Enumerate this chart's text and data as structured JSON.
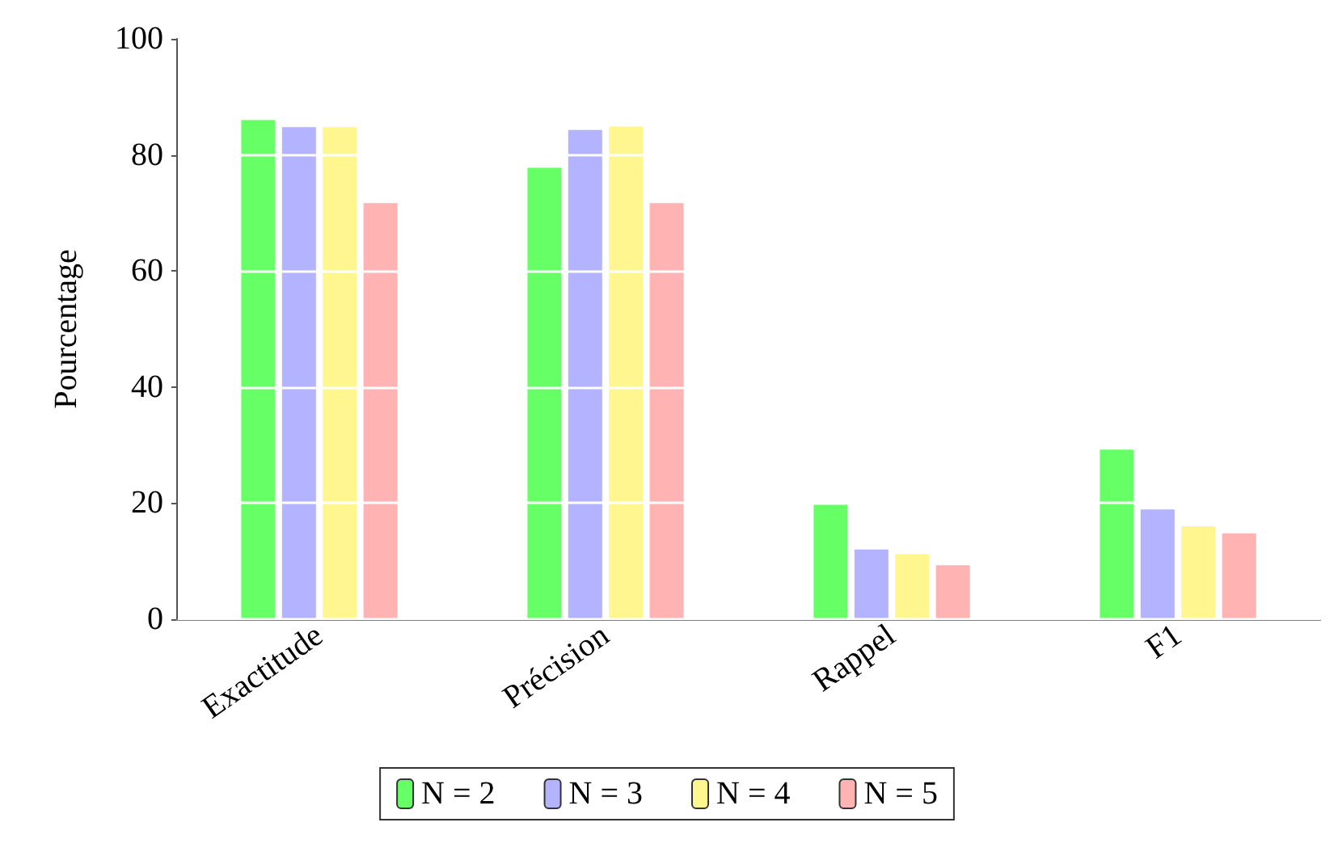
{
  "chart_data": {
    "type": "bar",
    "ylabel": "Pourcentage",
    "categories": [
      "Exactitude",
      "Précision",
      "Rappel",
      "F1"
    ],
    "series": [
      {
        "name": "N = 2",
        "color": "#66ff66",
        "values": [
          86.0,
          77.8,
          19.7,
          29.2
        ]
      },
      {
        "name": "N = 3",
        "color": "#b3b3ff",
        "values": [
          84.8,
          84.3,
          12.0,
          18.9
        ]
      },
      {
        "name": "N = 4",
        "color": "#fff68f",
        "values": [
          84.8,
          84.9,
          11.2,
          16.0
        ]
      },
      {
        "name": "N = 5",
        "color": "#ffb3b3",
        "values": [
          71.7,
          71.7,
          9.3,
          14.8
        ]
      }
    ],
    "ylim": [
      0,
      100
    ],
    "yticks": [
      0,
      20,
      40,
      60,
      80,
      100
    ],
    "grid": "y",
    "legend": "bottom"
  }
}
